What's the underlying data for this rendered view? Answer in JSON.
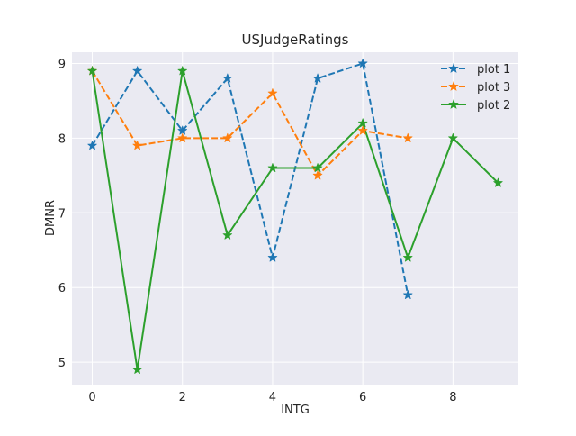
{
  "chart_data": {
    "type": "line",
    "title": "USJudgeRatings",
    "xlabel": "INTG",
    "ylabel": "DMNR",
    "xlim": [
      -0.45,
      9.45
    ],
    "ylim": [
      4.7,
      9.15
    ],
    "xticks": [
      0,
      2,
      4,
      6,
      8
    ],
    "yticks": [
      5,
      6,
      7,
      8,
      9
    ],
    "grid": true,
    "legend_position": "top-right",
    "marker": "star",
    "series": [
      {
        "name": "plot 1",
        "color": "#1f77b4",
        "linestyle": "dashed",
        "x": [
          0,
          1,
          2,
          3,
          4,
          5,
          6,
          7
        ],
        "y": [
          7.9,
          8.9,
          8.1,
          8.8,
          6.4,
          8.8,
          9.0,
          5.9
        ]
      },
      {
        "name": "plot 3",
        "color": "#ff7f0e",
        "linestyle": "dashed",
        "x": [
          0,
          1,
          2,
          3,
          4,
          5,
          6,
          7
        ],
        "y": [
          8.9,
          7.9,
          8.0,
          8.0,
          8.6,
          7.5,
          8.1,
          8.0
        ]
      },
      {
        "name": "plot 2",
        "color": "#2ca02c",
        "linestyle": "solid",
        "x": [
          0,
          1,
          2,
          3,
          4,
          5,
          6,
          7,
          8,
          9
        ],
        "y": [
          8.9,
          4.9,
          8.9,
          6.7,
          7.6,
          7.6,
          8.2,
          6.4,
          8.0,
          7.4
        ]
      }
    ]
  }
}
